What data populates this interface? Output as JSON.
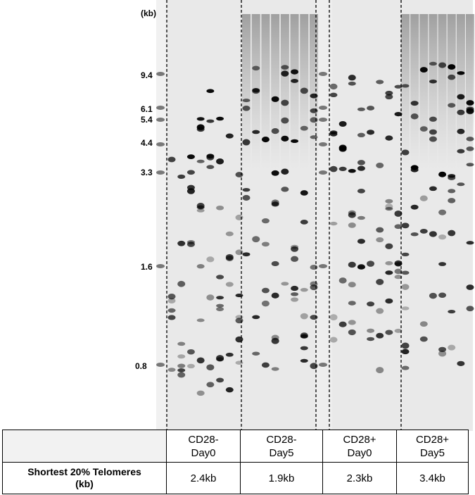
{
  "figure": {
    "ladder": {
      "unit_label": "(kb)",
      "markers": [
        "9.4",
        "6.1",
        "5.4",
        "4.4",
        "3.3",
        "1.6",
        "0.8"
      ]
    },
    "table": {
      "groups": [
        {
          "line1": "CD28-",
          "line2": "Day0",
          "value": "2.4kb"
        },
        {
          "line1": "CD28-",
          "line2": "Day5",
          "value": "1.9kb"
        },
        {
          "line1": "CD28+",
          "line2": "Day0",
          "value": "2.3kb"
        },
        {
          "line1": "CD28+",
          "line2": "Day5",
          "value": "3.4kb"
        }
      ],
      "row_label_line1": "Shortest 20% Telomeres",
      "row_label_line2": "(kb)"
    }
  }
}
